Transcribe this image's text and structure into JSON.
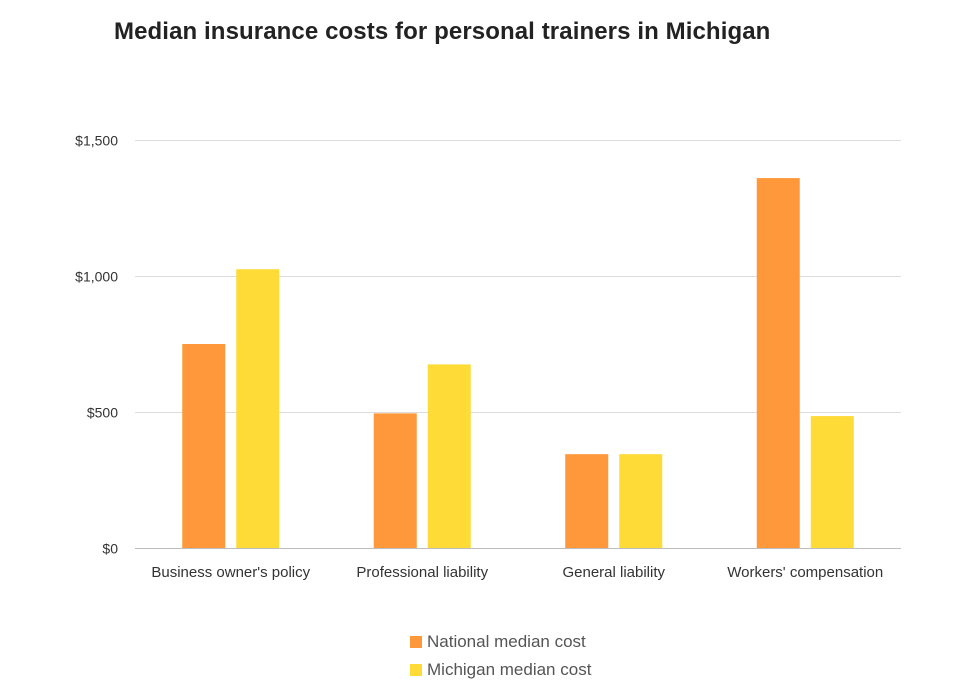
{
  "chart_data": {
    "type": "bar",
    "title": "Median insurance costs for personal trainers in Michigan",
    "xlabel": "",
    "ylabel": "",
    "categories": [
      "Business owner's policy",
      "Professional liability",
      "General liability",
      "Workers' compensation"
    ],
    "series": [
      {
        "name": "National median cost",
        "color": "#FF983A",
        "values": [
          750,
          495,
          345,
          1360
        ]
      },
      {
        "name": "Michigan median cost",
        "color": "#FFDB38",
        "values": [
          1025,
          675,
          345,
          485
        ]
      }
    ],
    "ylim": [
      0,
      1500
    ],
    "yticks": [
      0,
      500,
      1000,
      1500
    ],
    "ytick_labels": [
      "$0",
      "$500",
      "$1,000",
      "$1,500"
    ],
    "grid": true,
    "legend_position": "bottom"
  }
}
